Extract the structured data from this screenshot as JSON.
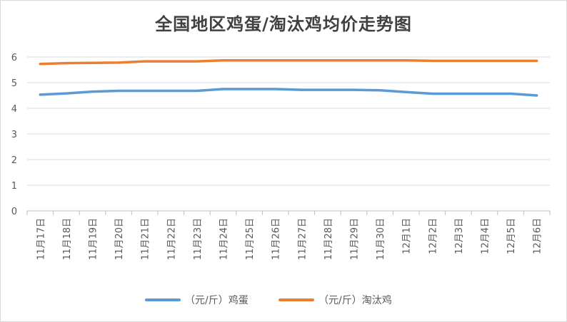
{
  "chart_data": {
    "type": "line",
    "title": "全国地区鸡蛋/淘汰鸡均价走势图",
    "categories": [
      "11月17日",
      "11月18日",
      "11月19日",
      "11月20日",
      "11月21日",
      "11月22日",
      "11月23日",
      "11月24日",
      "11月25日",
      "11月26日",
      "11月27日",
      "11月28日",
      "11月29日",
      "11月30日",
      "12月1日",
      "12月2日",
      "12月3日",
      "12月4日",
      "12月5日",
      "12月6日"
    ],
    "ylim": [
      0,
      6
    ],
    "yticks": [
      0,
      1,
      2,
      3,
      4,
      5,
      6
    ],
    "grid": true,
    "legend_position": "bottom",
    "series": [
      {
        "name": "（元/斤）鸡蛋",
        "color": "#5b9bd5",
        "values": [
          4.53,
          4.58,
          4.65,
          4.68,
          4.68,
          4.68,
          4.68,
          4.75,
          4.75,
          4.75,
          4.72,
          4.72,
          4.72,
          4.7,
          4.63,
          4.57,
          4.57,
          4.57,
          4.57,
          4.5
        ]
      },
      {
        "name": "（元/斤）淘汰鸡",
        "color": "#ed7d31",
        "values": [
          5.73,
          5.76,
          5.77,
          5.78,
          5.83,
          5.83,
          5.83,
          5.87,
          5.87,
          5.87,
          5.87,
          5.87,
          5.87,
          5.87,
          5.87,
          5.85,
          5.85,
          5.85,
          5.85,
          5.85
        ]
      }
    ]
  }
}
